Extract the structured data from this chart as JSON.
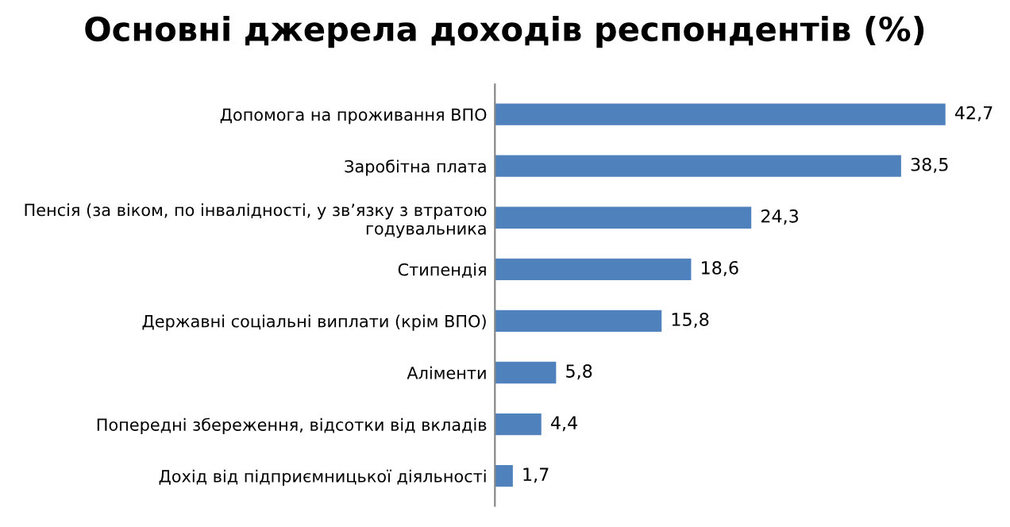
{
  "chart_data": {
    "type": "bar",
    "orientation": "horizontal",
    "title": "Основні джерела доходів респондентів (%)",
    "categories": [
      "Допомога на проживання ВПО",
      "Заробітна плата",
      "Пенсія (за віком, по інвалідності, у зв’язку з втратою\nгодувальника",
      "Стипендія",
      "Державні соціальні виплати (крім ВПО)",
      "Аліменти",
      "Попередні збереження, відсотки від вкладів",
      "Дохід від підприємницької діяльності"
    ],
    "values": [
      42.7,
      38.5,
      24.3,
      18.6,
      15.8,
      5.8,
      4.4,
      1.7
    ],
    "value_labels": [
      "42,7",
      "38,5",
      "24,3",
      "18,6",
      "15,8",
      "5,8",
      "4,4",
      "1,7"
    ],
    "color": "#4f81bd",
    "grid": false,
    "legend": false,
    "tick_labels": "y"
  }
}
